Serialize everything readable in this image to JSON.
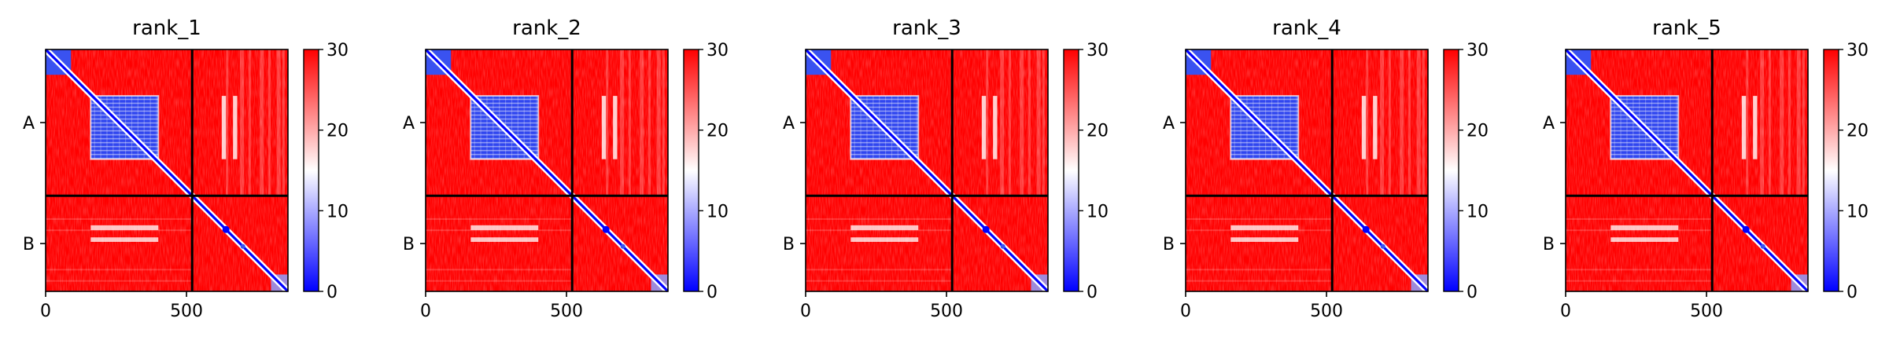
{
  "chart_data": {
    "type": "heatmap",
    "colormap": {
      "low": "#0000ff",
      "mid": "#ffffff",
      "high": "#ff0000"
    },
    "colorbar": {
      "range": [
        0,
        30
      ],
      "ticks": [
        "0",
        "10",
        "20",
        "30"
      ]
    },
    "sequence_length": 860,
    "chain_boundary": 520,
    "x_ticks": [
      {
        "value": 0,
        "label": "0"
      },
      {
        "value": 500,
        "label": "500"
      }
    ],
    "y_chain_labels": [
      {
        "value": 260,
        "label": "A"
      },
      {
        "value": 690,
        "label": "B"
      }
    ],
    "panels": [
      {
        "title": "rank_1"
      },
      {
        "title": "rank_2"
      },
      {
        "title": "rank_3"
      },
      {
        "title": "rank_4"
      },
      {
        "title": "rank_5"
      }
    ]
  }
}
